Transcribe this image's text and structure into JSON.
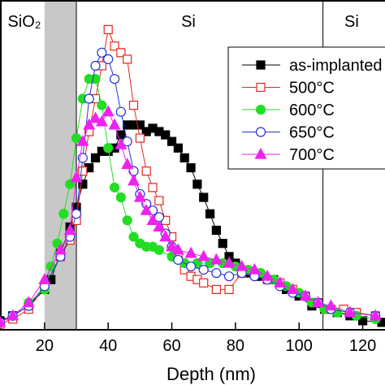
{
  "chart_data": {
    "type": "line",
    "x_label": "Depth (nm)",
    "region_labels": [
      "SiO₂",
      "Si",
      "Si"
    ],
    "shaded_range": [
      20,
      30
    ],
    "boundaries": [
      30,
      107.5
    ],
    "xlim": [
      6,
      127
    ],
    "ylim": [
      0,
      100
    ],
    "xticks": [
      20,
      40,
      60,
      80,
      100,
      120
    ],
    "series": [
      {
        "name": "as-implanted",
        "color": "#000000",
        "marker": "square",
        "filled": true,
        "x": [
          6,
          10,
          15,
          20,
          22,
          25,
          28,
          30,
          32,
          34,
          36,
          38,
          40,
          42,
          44,
          46,
          48,
          50,
          52,
          54,
          56,
          58,
          60,
          62,
          64,
          66,
          68,
          70,
          72,
          74,
          76,
          78,
          80,
          84,
          88,
          92,
          96,
          100,
          104,
          108,
          112,
          116,
          120,
          126
        ],
        "values": [
          2.5,
          4,
          7,
          12,
          15,
          23,
          31,
          37,
          44,
          49,
          52,
          54,
          54,
          55,
          59,
          62,
          62,
          62,
          60,
          61,
          60,
          59,
          57,
          55,
          52,
          49,
          44,
          40,
          35,
          30,
          26,
          22,
          20,
          17,
          16,
          15,
          12,
          10,
          7,
          6,
          5,
          4,
          2.5,
          2
        ]
      },
      {
        "name": "500°C",
        "color": "#e8251e",
        "marker": "square",
        "filled": false,
        "x": [
          6,
          10,
          15,
          20,
          25,
          28,
          30,
          32,
          34,
          36,
          38,
          40,
          42,
          44,
          46,
          48,
          50,
          52,
          54,
          56,
          58,
          60,
          62,
          64,
          66,
          68,
          70,
          74,
          78,
          82,
          86,
          90,
          94,
          98,
          102,
          106,
          110,
          114,
          118,
          124
        ],
        "values": [
          1.5,
          3,
          6,
          13,
          22,
          27,
          33,
          48,
          60,
          70,
          80,
          91,
          86,
          84,
          82,
          68,
          58,
          48,
          43,
          39,
          33,
          28,
          22,
          18,
          16,
          15,
          14,
          12,
          12,
          17,
          17,
          15,
          14,
          12,
          10,
          8,
          6,
          6,
          5,
          4
        ]
      },
      {
        "name": "600°C",
        "color": "#22dd22",
        "marker": "circle",
        "filled": true,
        "x": [
          6,
          10,
          15,
          20,
          22,
          24,
          26,
          28,
          30,
          32,
          34,
          36,
          38,
          40,
          42,
          44,
          46,
          48,
          50,
          52,
          54,
          56,
          60,
          64,
          68,
          72,
          76,
          80,
          84,
          88,
          92,
          96,
          100,
          104,
          108,
          112,
          118,
          124
        ],
        "values": [
          2,
          4,
          8,
          12,
          19,
          26,
          35,
          44,
          58,
          70,
          76,
          76,
          68,
          55,
          43,
          40,
          33,
          28,
          26,
          25,
          25,
          24,
          22,
          20,
          20,
          20,
          20,
          19,
          18,
          17,
          15,
          13,
          11,
          8,
          6,
          5,
          4,
          3
        ]
      },
      {
        "name": "650°C",
        "color": "#2233dd",
        "marker": "circle",
        "filled": false,
        "x": [
          6,
          10,
          15,
          20,
          25,
          28,
          30,
          32,
          34,
          36,
          38,
          40,
          42,
          44,
          46,
          48,
          50,
          52,
          54,
          56,
          58,
          60,
          62,
          66,
          70,
          74,
          78,
          82,
          86,
          90,
          94,
          98,
          102,
          106,
          110,
          116,
          124
        ],
        "values": [
          2,
          4,
          7,
          13,
          22,
          28,
          35,
          52,
          70,
          80,
          84,
          82,
          76,
          66,
          57,
          48,
          41,
          38,
          36,
          34,
          29,
          25,
          21,
          19,
          18,
          17,
          16,
          17,
          16,
          15,
          13,
          11,
          10,
          8,
          6,
          5,
          4
        ]
      },
      {
        "name": "700°C",
        "color": "#ee22ee",
        "marker": "triangle",
        "filled": true,
        "x": [
          6,
          10,
          15,
          20,
          25,
          28,
          30,
          32,
          34,
          36,
          38,
          40,
          42,
          44,
          46,
          48,
          50,
          52,
          54,
          56,
          58,
          60,
          62,
          66,
          70,
          74,
          78,
          82,
          86,
          90,
          94,
          98,
          102,
          106,
          110,
          116,
          124
        ],
        "values": [
          2,
          4,
          8,
          15,
          24,
          30,
          46,
          57,
          62,
          64,
          63,
          66,
          62,
          56,
          50,
          45,
          40,
          36,
          33,
          31,
          28,
          25,
          24,
          23,
          22,
          21,
          20,
          19,
          18,
          16,
          14,
          12,
          10,
          8,
          7,
          5,
          4
        ]
      }
    ]
  }
}
